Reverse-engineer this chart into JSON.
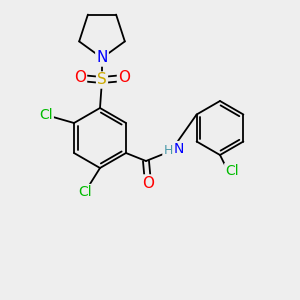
{
  "bg_color": "#eeeeee",
  "atom_colors": {
    "C": "#000000",
    "Cl": "#00bb00",
    "N": "#0000ff",
    "O": "#ff0000",
    "S": "#ccaa00",
    "H": "#4a9aaa"
  },
  "bond_color": "#000000",
  "fig_size": [
    3.0,
    3.0
  ],
  "dpi": 100
}
